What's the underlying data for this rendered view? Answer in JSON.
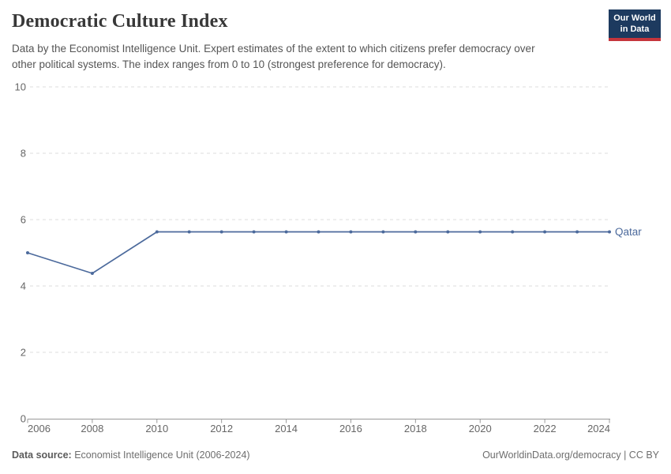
{
  "header": {
    "title": "Democratic Culture Index",
    "subtitle_lines": [
      "Data by the Economist Intelligence Unit. Expert estimates of the extent to which citizens prefer democracy over",
      "other political systems. The index ranges from 0 to 10 (strongest preference for democracy)."
    ],
    "logo": {
      "line1": "Our World",
      "line2": "in Data",
      "bg_color": "#1d3a5f",
      "accent_color": "#c5353c",
      "text_color": "#ffffff"
    }
  },
  "chart_data": {
    "type": "line",
    "title": "Democratic Culture Index",
    "xlabel": "",
    "ylabel": "",
    "xlim": [
      2006,
      2024
    ],
    "ylim": [
      0,
      10
    ],
    "x_ticks": [
      "2006",
      "2008",
      "2010",
      "2012",
      "2014",
      "2016",
      "2018",
      "2020",
      "2022",
      "2024"
    ],
    "y_ticks": [
      "0",
      "2",
      "4",
      "6",
      "8",
      "10"
    ],
    "grid": "horizontal-dashed",
    "grid_color": "#dcdcdc",
    "axis_color": "#999999",
    "tick_label_color": "#666666",
    "legend": "line-end-label",
    "series": [
      {
        "name": "Qatar",
        "color": "#4C6A9C",
        "points": [
          {
            "year": 2006,
            "value": 5.0
          },
          {
            "year": 2008,
            "value": 4.38
          },
          {
            "year": 2010,
            "value": 5.63
          },
          {
            "year": 2011,
            "value": 5.63
          },
          {
            "year": 2012,
            "value": 5.63
          },
          {
            "year": 2013,
            "value": 5.63
          },
          {
            "year": 2014,
            "value": 5.63
          },
          {
            "year": 2015,
            "value": 5.63
          },
          {
            "year": 2016,
            "value": 5.63
          },
          {
            "year": 2017,
            "value": 5.63
          },
          {
            "year": 2018,
            "value": 5.63
          },
          {
            "year": 2019,
            "value": 5.63
          },
          {
            "year": 2020,
            "value": 5.63
          },
          {
            "year": 2021,
            "value": 5.63
          },
          {
            "year": 2022,
            "value": 5.63
          },
          {
            "year": 2023,
            "value": 5.63
          },
          {
            "year": 2024,
            "value": 5.63
          }
        ]
      }
    ]
  },
  "footer": {
    "source_label": "Data source:",
    "source_value": "Economist Intelligence Unit (2006-2024)",
    "credit": "OurWorldinData.org/democracy | CC BY"
  }
}
